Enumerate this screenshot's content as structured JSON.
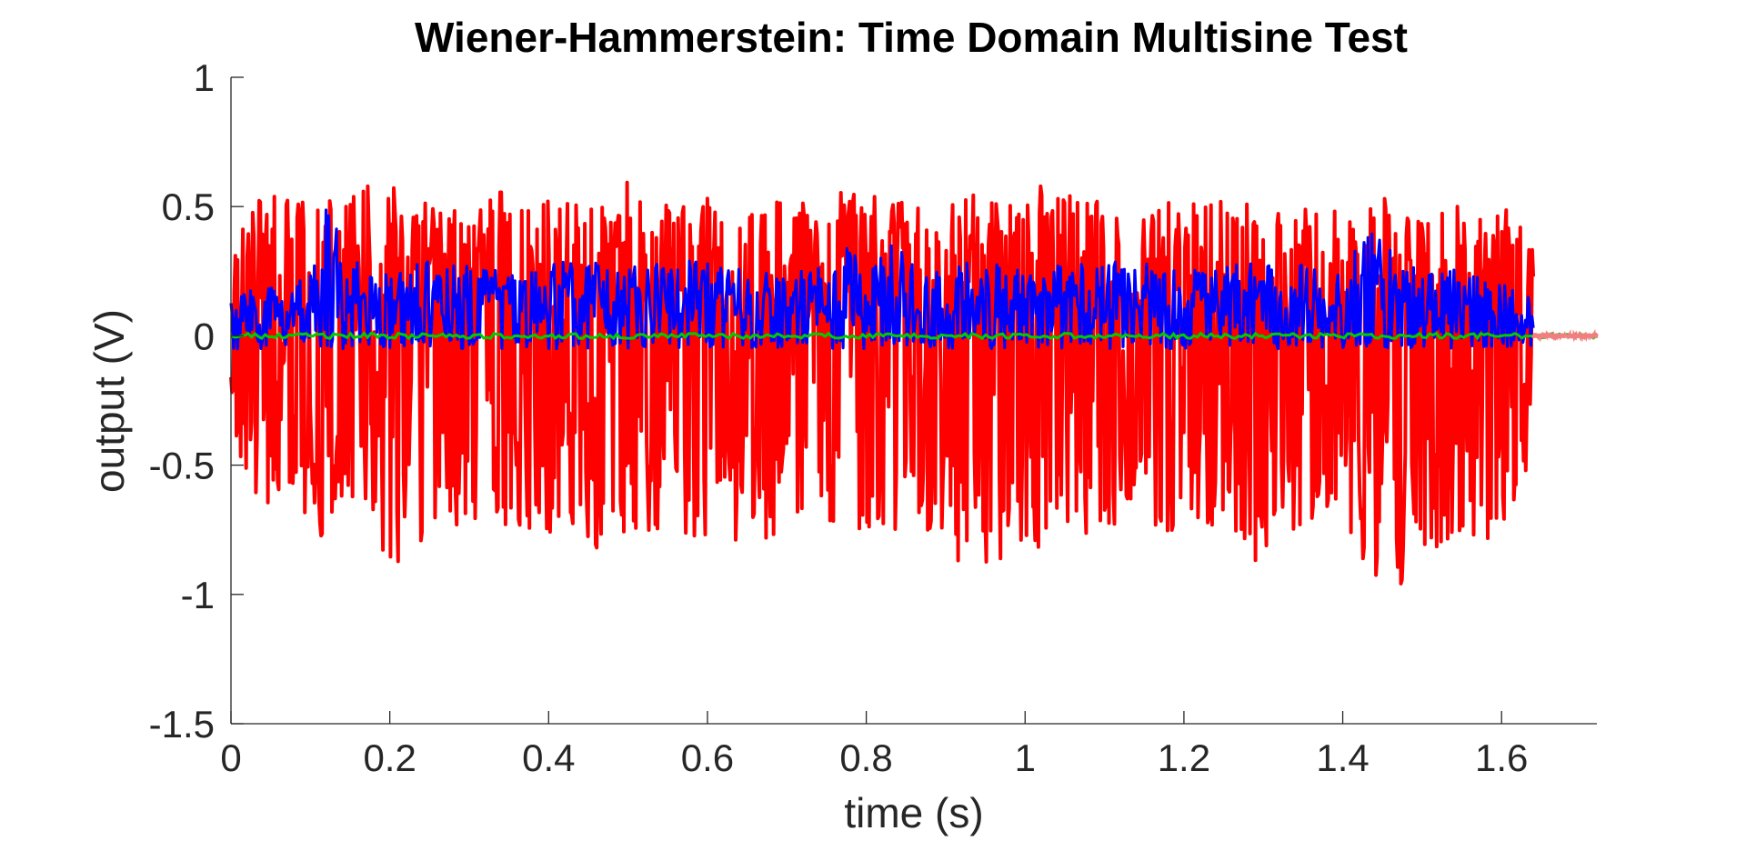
{
  "chart_data": {
    "type": "line",
    "title": "Wiener-Hammerstein: Time Domain Multisine Test",
    "xlabel": "time (s)",
    "ylabel": "output (V)",
    "xlim": [
      0,
      1.72
    ],
    "ylim": [
      -1.5,
      1
    ],
    "x_ticks": [
      0,
      0.2,
      0.4,
      0.6,
      0.8,
      1,
      1.2,
      1.4,
      1.6
    ],
    "x_tick_labels": [
      "0",
      "0.2",
      "0.4",
      "0.6",
      "0.8",
      "1",
      "1.2",
      "1.4",
      "1.6"
    ],
    "y_ticks": [
      1,
      0.5,
      0,
      -0.5,
      -1,
      -1.5
    ],
    "y_tick_labels": [
      "1",
      "0.5",
      "0",
      "-0.5",
      "-1",
      "-1.5"
    ],
    "grid": false,
    "legend": "none",
    "signal_end_time": 1.64,
    "series": [
      {
        "color": "#ff0000",
        "style": "dense multisine response",
        "upper_envelope": [
          [
            0,
            0.48
          ],
          [
            0.02,
            0.5
          ],
          [
            0.05,
            0.55
          ],
          [
            0.08,
            0.52
          ],
          [
            0.12,
            0.58
          ],
          [
            0.14,
            0.55
          ],
          [
            0.18,
            0.62
          ],
          [
            0.22,
            0.55
          ],
          [
            0.26,
            0.5
          ],
          [
            0.3,
            0.48
          ],
          [
            0.34,
            0.56
          ],
          [
            0.38,
            0.52
          ],
          [
            0.42,
            0.55
          ],
          [
            0.46,
            0.5
          ],
          [
            0.5,
            0.6
          ],
          [
            0.54,
            0.5
          ],
          [
            0.58,
            0.55
          ],
          [
            0.62,
            0.52
          ],
          [
            0.66,
            0.5
          ],
          [
            0.7,
            0.55
          ],
          [
            0.74,
            0.5
          ],
          [
            0.79,
            0.63
          ],
          [
            0.82,
            0.55
          ],
          [
            0.86,
            0.52
          ],
          [
            0.9,
            0.5
          ],
          [
            0.94,
            0.56
          ],
          [
            0.98,
            0.52
          ],
          [
            1.02,
            0.58
          ],
          [
            1.06,
            0.55
          ],
          [
            1.1,
            0.52
          ],
          [
            1.14,
            0.5
          ],
          [
            1.18,
            0.55
          ],
          [
            1.22,
            0.52
          ],
          [
            1.26,
            0.53
          ],
          [
            1.3,
            0.5
          ],
          [
            1.34,
            0.55
          ],
          [
            1.38,
            0.52
          ],
          [
            1.42,
            0.5
          ],
          [
            1.46,
            0.55
          ],
          [
            1.5,
            0.48
          ],
          [
            1.54,
            0.5
          ],
          [
            1.58,
            0.52
          ],
          [
            1.62,
            0.48
          ],
          [
            1.64,
            0.46
          ]
        ],
        "lower_envelope": [
          [
            0,
            -0.38
          ],
          [
            0.02,
            -0.55
          ],
          [
            0.05,
            -0.7
          ],
          [
            0.08,
            -0.75
          ],
          [
            0.1,
            -0.85
          ],
          [
            0.14,
            -0.7
          ],
          [
            0.18,
            -0.8
          ],
          [
            0.22,
            -0.92
          ],
          [
            0.26,
            -0.7
          ],
          [
            0.3,
            -0.75
          ],
          [
            0.34,
            -0.72
          ],
          [
            0.38,
            -0.8
          ],
          [
            0.42,
            -0.75
          ],
          [
            0.46,
            -0.82
          ],
          [
            0.5,
            -0.8
          ],
          [
            0.54,
            -0.85
          ],
          [
            0.58,
            -0.78
          ],
          [
            0.62,
            -0.8
          ],
          [
            0.66,
            -0.8
          ],
          [
            0.7,
            -0.75
          ],
          [
            0.74,
            -0.8
          ],
          [
            0.77,
            -0.98
          ],
          [
            0.8,
            -0.9
          ],
          [
            0.84,
            -0.78
          ],
          [
            0.88,
            -0.85
          ],
          [
            0.9,
            -0.88
          ],
          [
            0.95,
            -0.97
          ],
          [
            0.98,
            -0.8
          ],
          [
            1.02,
            -0.85
          ],
          [
            1.06,
            -0.75
          ],
          [
            1.1,
            -0.78
          ],
          [
            1.14,
            -0.72
          ],
          [
            1.18,
            -0.8
          ],
          [
            1.22,
            -0.75
          ],
          [
            1.26,
            -0.72
          ],
          [
            1.28,
            -0.95
          ],
          [
            1.32,
            -0.8
          ],
          [
            1.36,
            -0.75
          ],
          [
            1.4,
            -0.72
          ],
          [
            1.44,
            -0.95
          ],
          [
            1.47,
            -1.08
          ],
          [
            1.5,
            -0.85
          ],
          [
            1.54,
            -0.8
          ],
          [
            1.58,
            -0.82
          ],
          [
            1.62,
            -0.7
          ],
          [
            1.64,
            -0.5
          ]
        ]
      },
      {
        "color": "#0000ff",
        "style": "dense multisine response",
        "upper_envelope": [
          [
            0,
            0.15
          ],
          [
            0.05,
            0.2
          ],
          [
            0.1,
            0.25
          ],
          [
            0.12,
            0.5
          ],
          [
            0.16,
            0.28
          ],
          [
            0.2,
            0.25
          ],
          [
            0.26,
            0.3
          ],
          [
            0.3,
            0.28
          ],
          [
            0.34,
            0.25
          ],
          [
            0.42,
            0.3
          ],
          [
            0.5,
            0.28
          ],
          [
            0.58,
            0.3
          ],
          [
            0.66,
            0.25
          ],
          [
            0.74,
            0.28
          ],
          [
            0.78,
            0.35
          ],
          [
            0.8,
            0.25
          ],
          [
            0.82,
            0.45
          ],
          [
            0.86,
            0.28
          ],
          [
            0.94,
            0.3
          ],
          [
            1.0,
            0.25
          ],
          [
            1.06,
            0.28
          ],
          [
            1.14,
            0.3
          ],
          [
            1.2,
            0.25
          ],
          [
            1.26,
            0.28
          ],
          [
            1.34,
            0.3
          ],
          [
            1.4,
            0.28
          ],
          [
            1.43,
            0.45
          ],
          [
            1.48,
            0.28
          ],
          [
            1.56,
            0.25
          ],
          [
            1.64,
            0.15
          ]
        ],
        "lower_envelope": [
          [
            0,
            -0.06
          ],
          [
            0.1,
            -0.05
          ],
          [
            0.3,
            -0.05
          ],
          [
            0.5,
            -0.05
          ],
          [
            0.7,
            -0.05
          ],
          [
            0.9,
            -0.05
          ],
          [
            1.1,
            -0.05
          ],
          [
            1.3,
            -0.05
          ],
          [
            1.5,
            -0.05
          ],
          [
            1.64,
            -0.04
          ]
        ]
      },
      {
        "color": "#00cc00",
        "style": "thin line near zero",
        "points": [
          [
            0,
            0
          ],
          [
            0.4,
            0
          ],
          [
            0.8,
            0
          ],
          [
            1.2,
            0
          ],
          [
            1.64,
            0
          ],
          [
            1.72,
            0
          ]
        ]
      },
      {
        "color": "#f08080",
        "style": "thin line near zero",
        "points": [
          [
            1.64,
            0
          ],
          [
            1.72,
            0
          ]
        ]
      }
    ]
  }
}
